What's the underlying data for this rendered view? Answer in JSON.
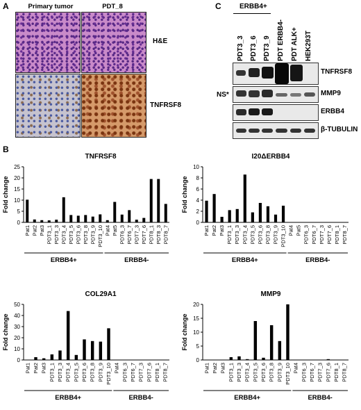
{
  "panels": {
    "a": "A",
    "b": "B",
    "c": "C"
  },
  "panel_a": {
    "col1": "Primary tumor",
    "col2": "PDT_8",
    "row1": "H&E",
    "row2": "TNFRSF8"
  },
  "panel_c": {
    "group": "ERBB4+",
    "lanes": [
      "PDT3_3",
      "PDT3_6",
      "PDT3_9",
      "PDT ERBB4-",
      "PDT ALK+",
      "HEK293T"
    ],
    "rows": [
      "TNFRSF8",
      "MMP9",
      "ERBB4",
      "β-TUBULIN"
    ],
    "ns": "NS*"
  },
  "chart_data": [
    {
      "type": "bar",
      "title": "TNFRSF8",
      "ylabel": "Fold change",
      "ylim": [
        0,
        25
      ],
      "yticks": [
        0,
        5,
        10,
        15,
        20,
        25
      ],
      "categories": [
        "Pat1",
        "Pat2",
        "Pat3",
        "PDT3_1",
        "PDT3_3",
        "PDT3_4",
        "PDT3_5",
        "PDT3_6",
        "PDT3_8",
        "PDT3_9",
        "PDT3_10",
        "Pat4",
        "Pat5",
        "PDT6_3",
        "PDT6_7",
        "PDT7_3",
        "PDT7_6",
        "PDT8_1",
        "PDT8_3",
        "PDT8_7"
      ],
      "values": [
        10.2,
        1.3,
        1.0,
        0.9,
        1.2,
        11.3,
        3.3,
        3.0,
        3.3,
        2.6,
        3.6,
        1.0,
        9.2,
        3.5,
        5.5,
        1.2,
        2.0,
        19.5,
        19.5,
        8.3
      ],
      "groups": [
        {
          "label": "ERBB4+",
          "start": 0,
          "end": 10
        },
        {
          "label": "ERBB4-",
          "start": 11,
          "end": 19
        }
      ]
    },
    {
      "type": "bar",
      "title": "I20ΔERBB4",
      "ylabel": "Fold change",
      "ylim": [
        0,
        10
      ],
      "yticks": [
        0,
        2,
        4,
        6,
        8,
        10
      ],
      "categories": [
        "Pat1",
        "Pat2",
        "Pat3",
        "PDT3_1",
        "PDT3_3",
        "PDT3_4",
        "PDT3_5",
        "PDT3_6",
        "PDT3_8",
        "PDT3_9",
        "PDT3_10",
        "Pat4",
        "Pat5",
        "PDT6_3",
        "PDT6_7",
        "PDT7_3",
        "PDT7_6",
        "PDT8_1",
        "PDT8_7"
      ],
      "values": [
        3.9,
        5.1,
        1.0,
        2.2,
        2.4,
        8.6,
        1.8,
        3.5,
        2.9,
        1.4,
        3.0,
        0,
        0,
        0,
        0,
        0,
        0,
        0,
        0
      ],
      "groups": [
        {
          "label": "ERBB4+",
          "start": 0,
          "end": 10
        },
        {
          "label": "ERBB4-",
          "start": 11,
          "end": 18
        }
      ]
    },
    {
      "type": "bar",
      "title": "COL29A1",
      "ylabel": "Fold change",
      "ylim": [
        0,
        50
      ],
      "yticks": [
        0,
        10,
        20,
        30,
        40,
        50
      ],
      "categories": [
        "Pat1",
        "Pat2",
        "Pat3",
        "PDT3_1",
        "PDT3_3",
        "PDT3_4",
        "PDT3_5",
        "PDT3_6",
        "PDT3_8",
        "PDT3_9",
        "PDT3_10",
        "Pat4",
        "PDT6_3",
        "PDT6_7",
        "PDT7_3",
        "PDT7_6",
        "PDT8_1",
        "PDT8_7"
      ],
      "values": [
        0,
        2.5,
        1.5,
        5.0,
        8.5,
        44.0,
        4.5,
        18.5,
        17.0,
        16.5,
        28.5,
        0,
        0,
        0,
        0,
        0,
        0,
        0
      ],
      "groups": [
        {
          "label": "ERBB4+",
          "start": 0,
          "end": 10
        },
        {
          "label": "ERBB4-",
          "start": 11,
          "end": 17
        }
      ]
    },
    {
      "type": "bar",
      "title": "MMP9",
      "ylabel": "Fold change",
      "ylim": [
        0,
        20
      ],
      "yticks": [
        0,
        5,
        10,
        15,
        20
      ],
      "categories": [
        "Pat1",
        "Pat2",
        "Pat3",
        "PDT3_1",
        "PDT3_3",
        "PDT3_4",
        "PDT3_5",
        "PDT3_6",
        "PDT3_8",
        "PDT3_9",
        "PDT3_10",
        "Pat4",
        "PDT6_3",
        "PDT6_7",
        "PDT7_3",
        "PDT7_6",
        "PDT8_1",
        "PDT8_7"
      ],
      "values": [
        0,
        0,
        0,
        1.0,
        1.3,
        0.3,
        14.0,
        0.8,
        12.5,
        6.8,
        20.0,
        0,
        0,
        0,
        0,
        0.3,
        0,
        0
      ],
      "groups": [
        {
          "label": "ERBB4+",
          "start": 0,
          "end": 10
        },
        {
          "label": "ERBB4-",
          "start": 11,
          "end": 17
        }
      ]
    }
  ]
}
